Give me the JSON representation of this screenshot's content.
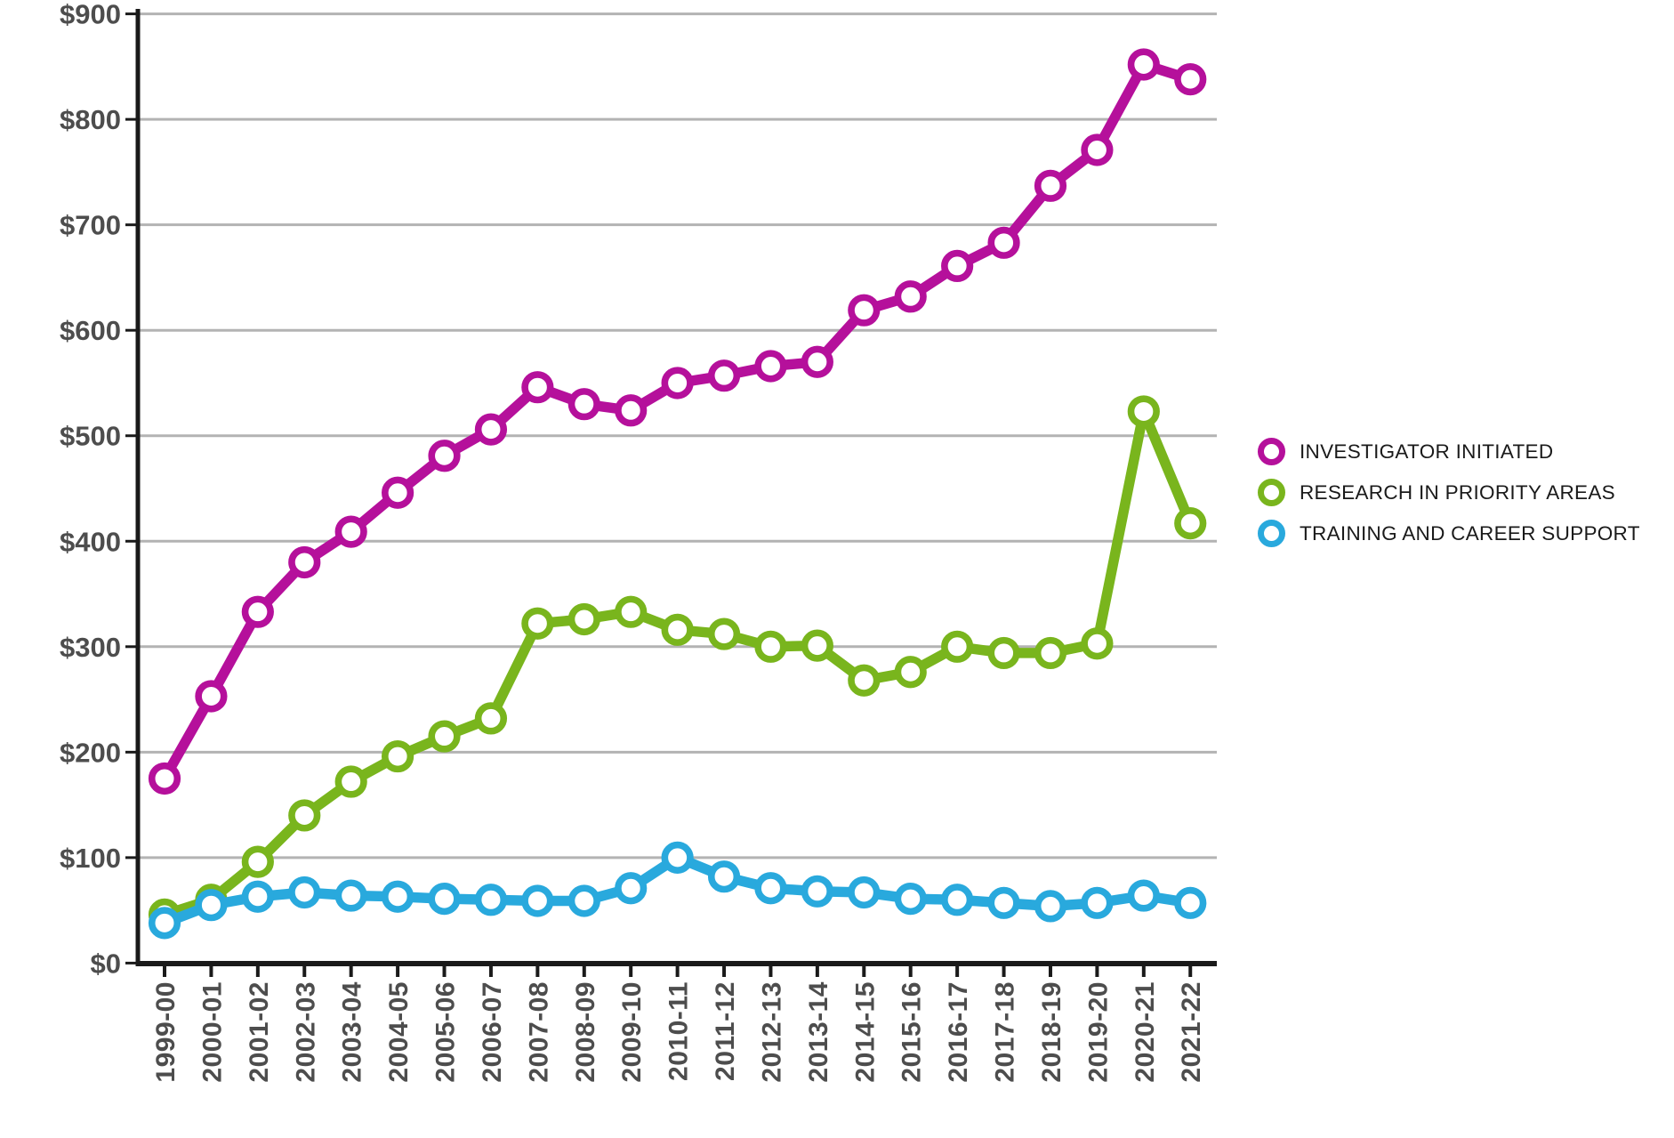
{
  "chart_data": {
    "type": "line",
    "title": "",
    "categories": [
      "1999-00",
      "2000-01",
      "2001-02",
      "2002-03",
      "2003-04",
      "2004-05",
      "2005-06",
      "2006-07",
      "2007-08",
      "2008-09",
      "2009-10",
      "2010-11",
      "2011-12",
      "2012-13",
      "2013-14",
      "2014-15",
      "2015-16",
      "2016-17",
      "2017-18",
      "2018-19",
      "2019-20",
      "2020-21",
      "2021-22"
    ],
    "series": [
      {
        "name": "INVESTIGATOR INITIATED",
        "color": "#b5109b",
        "values": [
          175,
          253,
          333,
          380,
          409,
          446,
          481,
          506,
          546,
          530,
          524,
          550,
          557,
          566,
          570,
          619,
          632,
          661,
          683,
          737,
          771,
          852,
          838
        ]
      },
      {
        "name": "RESEARCH IN PRIORITY AREAS",
        "color": "#79b51d",
        "values": [
          46,
          60,
          96,
          140,
          172,
          196,
          215,
          232,
          322,
          326,
          333,
          316,
          312,
          300,
          301,
          268,
          276,
          300,
          294,
          294,
          303,
          523,
          417
        ]
      },
      {
        "name": "TRAINING AND CAREER SUPPORT",
        "color": "#29a9dd",
        "values": [
          38,
          55,
          63,
          67,
          64,
          63,
          61,
          60,
          59,
          59,
          71,
          100,
          82,
          71,
          68,
          67,
          61,
          60,
          57,
          54,
          57,
          64,
          57
        ]
      }
    ],
    "y_axis": {
      "min": 0,
      "max": 900,
      "step": 100,
      "tick_prefix": "$",
      "tick_labels": [
        "$0",
        "$100",
        "$200",
        "$300",
        "$400",
        "$500",
        "$600",
        "$700",
        "$800",
        "$900"
      ]
    },
    "x_axis": {
      "label_rotation_degrees": -90
    },
    "grid": true,
    "legend_position": "right",
    "marker_style": "open-circle"
  },
  "styles": {
    "grid_color": "#b3b3b3",
    "axis_color": "#1a1a1a",
    "tick_label_color": "#4d4d4d",
    "legend_text_color": "#1a1a1a",
    "background": "#ffffff"
  }
}
